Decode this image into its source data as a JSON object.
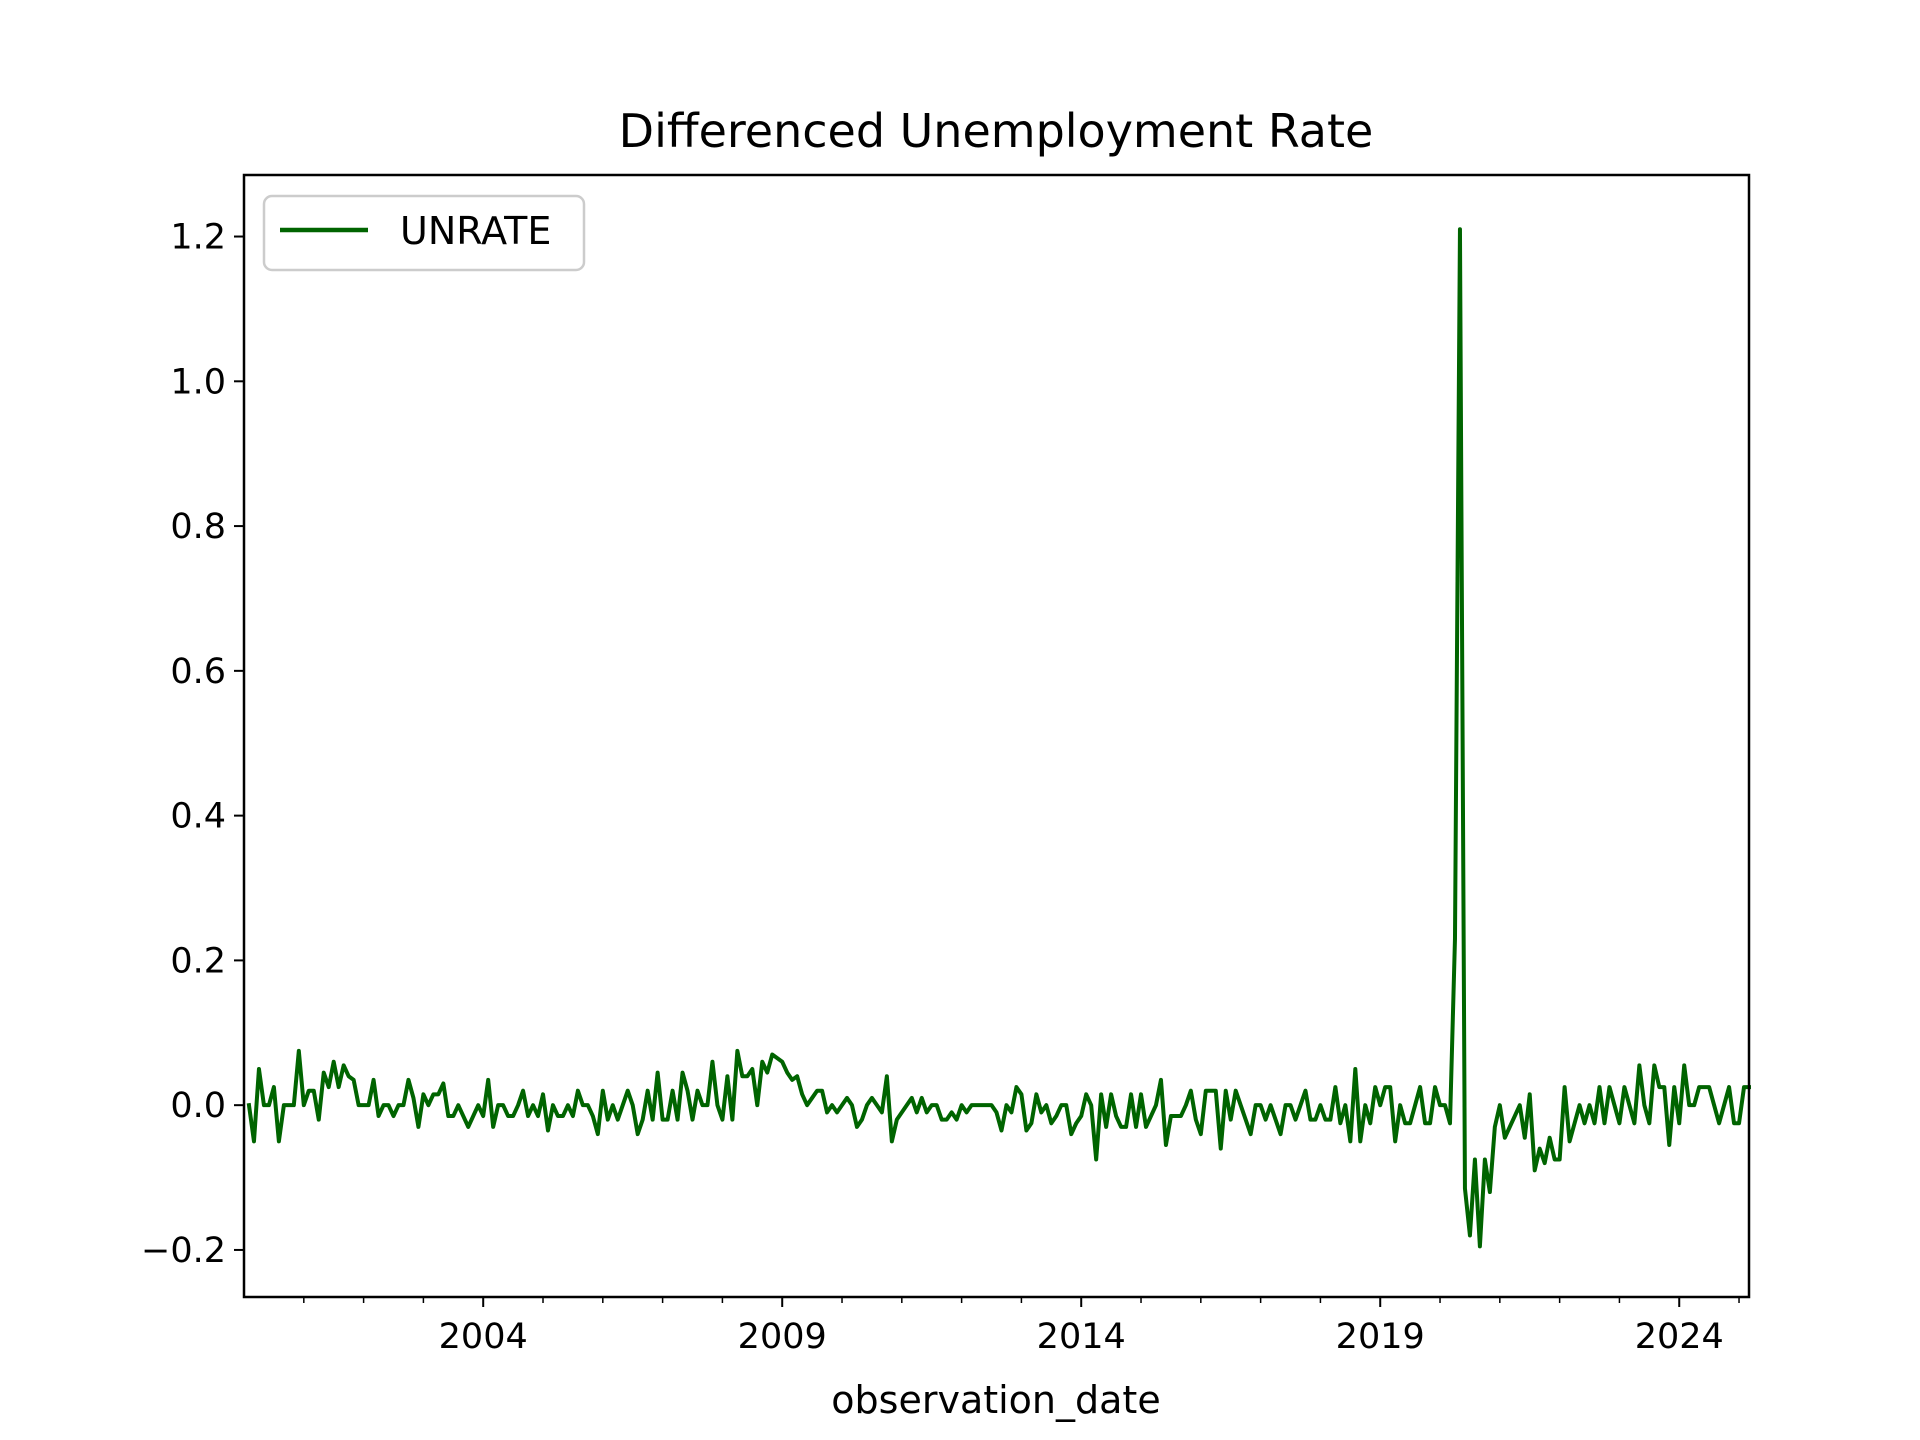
{
  "chart_data": {
    "type": "line",
    "title": "Differenced Unemployment Rate",
    "xlabel": "observation_date",
    "ylabel": "",
    "x_start": "2000-02",
    "x_end": "2025-03",
    "xlim": [
      "2000-01",
      "2025-03"
    ],
    "ylim": [
      -0.265,
      1.285
    ],
    "yticks": [
      -0.2,
      0.0,
      0.2,
      0.4,
      0.6,
      0.8,
      1.0,
      1.2
    ],
    "ytick_labels": [
      "−0.2",
      "0.0",
      "0.2",
      "0.4",
      "0.6",
      "0.8",
      "1.0",
      "1.2"
    ],
    "xticks": [
      "2004",
      "2009",
      "2014",
      "2019",
      "2024"
    ],
    "grid": false,
    "legend": "upper-left",
    "series": [
      {
        "name": "UNRATE",
        "color": "#006400",
        "values": [
          0.0,
          -0.05,
          0.05,
          0.0,
          0.0,
          0.025,
          -0.05,
          0.0,
          0.0,
          0.0,
          0.075,
          0.0,
          0.02,
          0.02,
          -0.02,
          0.045,
          0.025,
          0.06,
          0.025,
          0.055,
          0.04,
          0.035,
          0.0,
          0.0,
          0.0,
          0.035,
          -0.015,
          0.0,
          0.0,
          -0.015,
          0.0,
          0.0,
          0.035,
          0.01,
          -0.03,
          0.015,
          0.0,
          0.015,
          0.015,
          0.03,
          -0.015,
          -0.015,
          0.0,
          -0.015,
          -0.03,
          -0.015,
          0.0,
          -0.015,
          0.035,
          -0.03,
          0.0,
          0.0,
          -0.015,
          -0.015,
          0.0,
          0.02,
          -0.015,
          0.0,
          -0.015,
          0.015,
          -0.035,
          0.0,
          -0.015,
          -0.015,
          0.0,
          -0.015,
          0.02,
          0.0,
          0.0,
          -0.015,
          -0.04,
          0.02,
          -0.02,
          0.0,
          -0.02,
          0.0,
          0.02,
          0.0,
          -0.04,
          -0.02,
          0.02,
          -0.02,
          0.045,
          -0.02,
          -0.02,
          0.02,
          -0.02,
          0.045,
          0.02,
          -0.02,
          0.02,
          0.0,
          0.0,
          0.06,
          0.0,
          -0.02,
          0.04,
          -0.02,
          0.075,
          0.04,
          0.04,
          0.05,
          0.0,
          0.06,
          0.045,
          0.07,
          0.065,
          0.06,
          0.045,
          0.035,
          0.04,
          0.015,
          0.0,
          0.01,
          0.02,
          0.02,
          -0.01,
          0.0,
          -0.01,
          0.0,
          0.01,
          0.0,
          -0.03,
          -0.02,
          0.0,
          0.01,
          0.0,
          -0.01,
          0.04,
          -0.05,
          -0.02,
          -0.01,
          0.0,
          0.01,
          -0.01,
          0.01,
          -0.01,
          0.0,
          0.0,
          -0.02,
          -0.02,
          -0.01,
          -0.02,
          0.0,
          -0.01,
          0.0,
          0.0,
          0.0,
          0.0,
          0.0,
          -0.01,
          -0.035,
          0.0,
          -0.01,
          0.025,
          0.015,
          -0.035,
          -0.025,
          0.015,
          -0.01,
          0.0,
          -0.025,
          -0.015,
          0.0,
          0.0,
          -0.04,
          -0.025,
          -0.015,
          0.015,
          0.0,
          -0.075,
          0.015,
          -0.03,
          0.015,
          -0.015,
          -0.03,
          -0.03,
          0.015,
          -0.03,
          0.015,
          -0.03,
          -0.015,
          0.0,
          0.035,
          -0.055,
          -0.015,
          -0.015,
          -0.015,
          0.0,
          0.02,
          -0.02,
          -0.04,
          0.02,
          0.02,
          0.02,
          -0.06,
          0.02,
          -0.02,
          0.02,
          0.0,
          -0.02,
          -0.04,
          0.0,
          0.0,
          -0.02,
          0.0,
          -0.02,
          -0.04,
          0.0,
          0.0,
          -0.02,
          0.0,
          0.02,
          -0.02,
          -0.02,
          0.0,
          -0.02,
          -0.02,
          0.025,
          -0.025,
          0.0,
          -0.05,
          0.05,
          -0.05,
          0.0,
          -0.025,
          0.025,
          0.0,
          0.025,
          0.025,
          -0.05,
          0.0,
          -0.025,
          -0.025,
          0.0,
          0.025,
          -0.025,
          -0.025,
          0.025,
          0.0,
          0.0,
          -0.025,
          0.23,
          1.21,
          -0.115,
          -0.18,
          -0.075,
          -0.195,
          -0.075,
          -0.12,
          -0.03,
          0.0,
          -0.045,
          -0.03,
          -0.015,
          0.0,
          -0.045,
          0.015,
          -0.09,
          -0.06,
          -0.08,
          -0.045,
          -0.075,
          -0.075,
          0.025,
          -0.05,
          -0.025,
          0.0,
          -0.025,
          0.0,
          -0.025,
          0.025,
          -0.025,
          0.025,
          0.0,
          -0.025,
          0.025,
          0.0,
          -0.025,
          0.055,
          0.0,
          -0.025,
          0.055,
          0.025,
          0.025,
          -0.055,
          0.025,
          -0.025,
          0.055,
          0.0,
          0.0,
          0.025,
          0.025,
          0.025,
          0.0,
          -0.025,
          0.0,
          0.025,
          -0.025,
          -0.025,
          0.025,
          0.025
        ]
      }
    ]
  }
}
